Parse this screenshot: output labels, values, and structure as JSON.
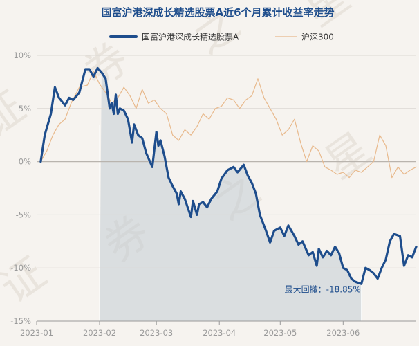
{
  "chart_data": {
    "type": "line",
    "title": "国富沪港深成长精选股票A近6个月累计收益率走势",
    "watermark": "证券之星",
    "legend_position": "top",
    "series": [
      {
        "name": "国富沪港深成长精选股票A",
        "color": "#1e4d8c",
        "values": [
          [
            "2023-01-03",
            0.0
          ],
          [
            "2023-01-05",
            2.5
          ],
          [
            "2023-01-08",
            4.5
          ],
          [
            "2023-01-10",
            7.0
          ],
          [
            "2023-01-12",
            6.0
          ],
          [
            "2023-01-15",
            5.3
          ],
          [
            "2023-01-17",
            6.0
          ],
          [
            "2023-01-19",
            5.8
          ],
          [
            "2023-01-22",
            6.5
          ],
          [
            "2023-01-25",
            8.7
          ],
          [
            "2023-01-27",
            8.7
          ],
          [
            "2023-01-29",
            8.0
          ],
          [
            "2023-01-31",
            8.8
          ],
          [
            "2023-02-02",
            8.4
          ],
          [
            "2023-02-04",
            7.8
          ],
          [
            "2023-02-06",
            5.0
          ],
          [
            "2023-02-07",
            5.5
          ],
          [
            "2023-02-08",
            4.5
          ],
          [
            "2023-02-09",
            6.3
          ],
          [
            "2023-02-10",
            4.5
          ],
          [
            "2023-02-11",
            5.0
          ],
          [
            "2023-02-13",
            4.8
          ],
          [
            "2023-02-15",
            4.0
          ],
          [
            "2023-02-17",
            1.8
          ],
          [
            "2023-02-18",
            3.5
          ],
          [
            "2023-02-20",
            2.5
          ],
          [
            "2023-02-22",
            2.2
          ],
          [
            "2023-02-24",
            0.8
          ],
          [
            "2023-02-27",
            -0.5
          ],
          [
            "2023-03-01",
            2.8
          ],
          [
            "2023-03-02",
            1.5
          ],
          [
            "2023-03-03",
            2.0
          ],
          [
            "2023-03-05",
            0.5
          ],
          [
            "2023-03-07",
            -1.5
          ],
          [
            "2023-03-09",
            -2.3
          ],
          [
            "2023-03-11",
            -3.0
          ],
          [
            "2023-03-12",
            -4.0
          ],
          [
            "2023-03-13",
            -2.8
          ],
          [
            "2023-03-15",
            -3.5
          ],
          [
            "2023-03-18",
            -5.2
          ],
          [
            "2023-03-19",
            -3.7
          ],
          [
            "2023-03-21",
            -5.0
          ],
          [
            "2023-03-22",
            -4.0
          ],
          [
            "2023-03-24",
            -3.8
          ],
          [
            "2023-03-26",
            -4.3
          ],
          [
            "2023-03-28",
            -3.5
          ],
          [
            "2023-03-31",
            -2.8
          ],
          [
            "2023-04-02",
            -1.6
          ],
          [
            "2023-04-05",
            -0.8
          ],
          [
            "2023-04-08",
            -0.5
          ],
          [
            "2023-04-10",
            -1.0
          ],
          [
            "2023-04-13",
            -0.3
          ],
          [
            "2023-04-15",
            -1.3
          ],
          [
            "2023-04-17",
            -2.0
          ],
          [
            "2023-04-19",
            -3.0
          ],
          [
            "2023-04-21",
            -5.0
          ],
          [
            "2023-04-24",
            -6.5
          ],
          [
            "2023-04-26",
            -7.6
          ],
          [
            "2023-04-28",
            -6.5
          ],
          [
            "2023-05-01",
            -6.2
          ],
          [
            "2023-05-03",
            -7.0
          ],
          [
            "2023-05-05",
            -6.0
          ],
          [
            "2023-05-08",
            -7.0
          ],
          [
            "2023-05-10",
            -7.8
          ],
          [
            "2023-05-12",
            -7.5
          ],
          [
            "2023-05-15",
            -8.8
          ],
          [
            "2023-05-17",
            -8.5
          ],
          [
            "2023-05-19",
            -9.8
          ],
          [
            "2023-05-20",
            -8.2
          ],
          [
            "2023-05-22",
            -9.0
          ],
          [
            "2023-05-24",
            -8.4
          ],
          [
            "2023-05-26",
            -8.8
          ],
          [
            "2023-05-28",
            -8.0
          ],
          [
            "2023-05-30",
            -8.6
          ],
          [
            "2023-06-01",
            -10.0
          ],
          [
            "2023-06-03",
            -10.2
          ],
          [
            "2023-06-05",
            -11.0
          ],
          [
            "2023-06-07",
            -11.3
          ],
          [
            "2023-06-10",
            -11.5
          ],
          [
            "2023-06-12",
            -10.0
          ],
          [
            "2023-06-14",
            -10.2
          ],
          [
            "2023-06-16",
            -10.5
          ],
          [
            "2023-06-18",
            -11.0
          ],
          [
            "2023-06-20",
            -10.0
          ],
          [
            "2023-06-22",
            -9.2
          ],
          [
            "2023-06-24",
            -7.5
          ],
          [
            "2023-06-26",
            -6.8
          ],
          [
            "2023-06-29",
            -7.0
          ],
          [
            "2023-07-01",
            -9.8
          ],
          [
            "2023-07-03",
            -8.8
          ],
          [
            "2023-07-05",
            -9.0
          ],
          [
            "2023-07-07",
            -8.0
          ]
        ]
      },
      {
        "name": "沪深300",
        "color": "#e8b98c",
        "values": [
          [
            "2023-01-03",
            0.0
          ],
          [
            "2023-01-06",
            1.0
          ],
          [
            "2023-01-09",
            2.5
          ],
          [
            "2023-01-12",
            3.5
          ],
          [
            "2023-01-15",
            4.0
          ],
          [
            "2023-01-18",
            5.5
          ],
          [
            "2023-01-22",
            7.0
          ],
          [
            "2023-01-26",
            7.2
          ],
          [
            "2023-01-29",
            8.5
          ],
          [
            "2023-02-01",
            7.3
          ],
          [
            "2023-02-04",
            6.5
          ],
          [
            "2023-02-07",
            5.5
          ],
          [
            "2023-02-10",
            6.0
          ],
          [
            "2023-02-13",
            7.0
          ],
          [
            "2023-02-16",
            6.2
          ],
          [
            "2023-02-19",
            5.0
          ],
          [
            "2023-02-22",
            6.8
          ],
          [
            "2023-02-25",
            5.5
          ],
          [
            "2023-02-28",
            5.8
          ],
          [
            "2023-03-03",
            5.0
          ],
          [
            "2023-03-06",
            4.5
          ],
          [
            "2023-03-09",
            2.5
          ],
          [
            "2023-03-12",
            2.0
          ],
          [
            "2023-03-15",
            3.0
          ],
          [
            "2023-03-18",
            2.5
          ],
          [
            "2023-03-21",
            3.3
          ],
          [
            "2023-03-24",
            4.5
          ],
          [
            "2023-03-27",
            4.0
          ],
          [
            "2023-03-30",
            5.0
          ],
          [
            "2023-04-02",
            5.2
          ],
          [
            "2023-04-05",
            6.0
          ],
          [
            "2023-04-08",
            5.8
          ],
          [
            "2023-04-11",
            5.0
          ],
          [
            "2023-04-14",
            5.8
          ],
          [
            "2023-04-17",
            6.2
          ],
          [
            "2023-04-20",
            7.8
          ],
          [
            "2023-04-23",
            6.0
          ],
          [
            "2023-04-26",
            5.0
          ],
          [
            "2023-04-29",
            4.0
          ],
          [
            "2023-05-02",
            2.5
          ],
          [
            "2023-05-05",
            3.0
          ],
          [
            "2023-05-08",
            4.0
          ],
          [
            "2023-05-11",
            1.8
          ],
          [
            "2023-05-14",
            0.0
          ],
          [
            "2023-05-17",
            1.5
          ],
          [
            "2023-05-20",
            1.0
          ],
          [
            "2023-05-23",
            -0.5
          ],
          [
            "2023-05-26",
            -0.8
          ],
          [
            "2023-05-29",
            -1.2
          ],
          [
            "2023-06-01",
            -1.0
          ],
          [
            "2023-06-04",
            -1.5
          ],
          [
            "2023-06-07",
            -0.8
          ],
          [
            "2023-06-10",
            -1.0
          ],
          [
            "2023-06-13",
            -0.5
          ],
          [
            "2023-06-16",
            0.0
          ],
          [
            "2023-06-19",
            2.5
          ],
          [
            "2023-06-22",
            1.5
          ],
          [
            "2023-06-25",
            -1.5
          ],
          [
            "2023-06-28",
            -0.5
          ],
          [
            "2023-07-01",
            -1.2
          ],
          [
            "2023-07-04",
            -0.8
          ],
          [
            "2023-07-07",
            -0.5
          ]
        ]
      }
    ],
    "x_range": [
      "2023-01-01",
      "2023-07-07"
    ],
    "x_tick_labels": [
      "2023-01",
      "2023-02",
      "2023-03",
      "2023-04",
      "2023-05",
      "2023-06"
    ],
    "x_tick_dates": [
      "2023-01-01",
      "2023-02-01",
      "2023-03-01",
      "2023-04-01",
      "2023-05-01",
      "2023-06-01"
    ],
    "y_ticks": [
      10,
      5,
      0,
      -5,
      -10,
      -15
    ],
    "y_tick_labels": [
      "10%",
      "5%",
      "0%",
      "-5%",
      "-10%",
      "-15%"
    ],
    "ylim": [
      -15,
      10
    ],
    "grid": "horizontal",
    "max_drawdown": {
      "label": "最大回撤：-18.85%",
      "start": "2023-02-01",
      "end": "2023-06-10",
      "fill_color": "#c3ccd4"
    }
  }
}
